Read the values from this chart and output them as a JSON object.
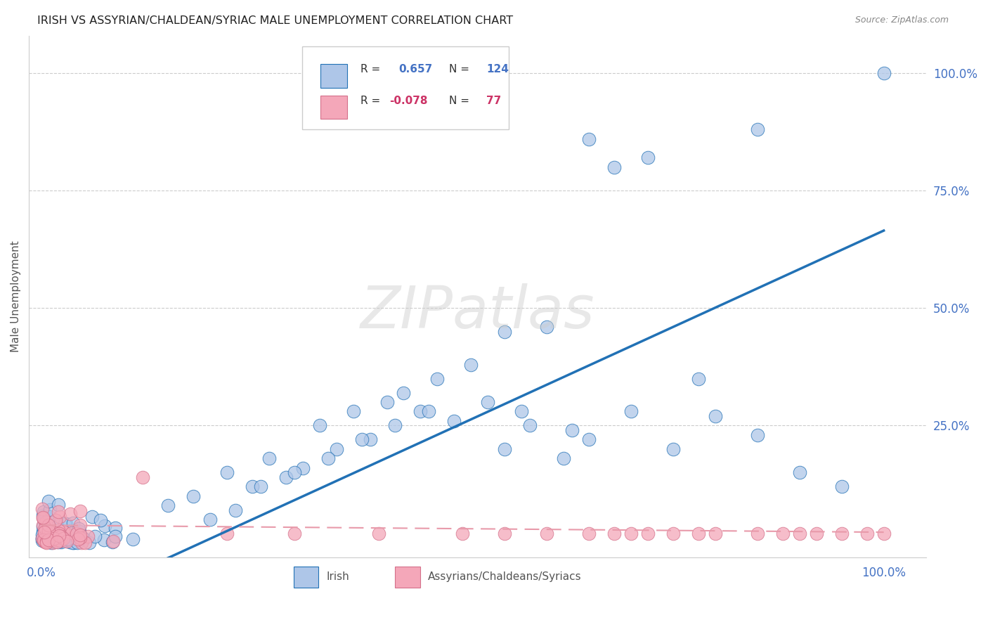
{
  "title": "IRISH VS ASSYRIAN/CHALDEAN/SYRIAC MALE UNEMPLOYMENT CORRELATION CHART",
  "source": "Source: ZipAtlas.com",
  "ylabel": "Male Unemployment",
  "legend_irish_r": "0.657",
  "legend_irish_n": "124",
  "legend_acs_r": "-0.078",
  "legend_acs_n": "77",
  "irish_color": "#aec6e8",
  "acs_color": "#f4a7b9",
  "irish_line_color": "#2171b5",
  "acs_line_color": "#e89aaa",
  "watermark": "ZIPatlas",
  "background": "#ffffff",
  "grid_color": "#cccccc",
  "tick_color": "#4472c4"
}
